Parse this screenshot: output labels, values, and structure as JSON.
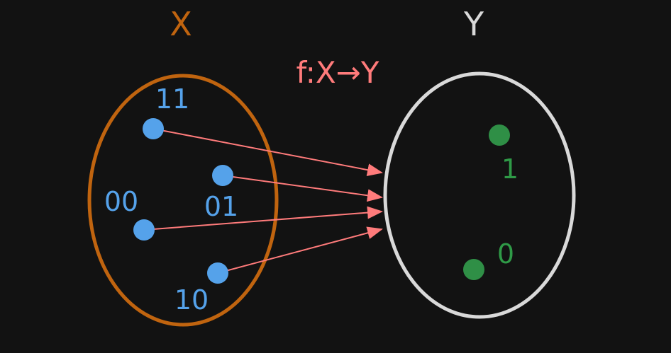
{
  "diagram": {
    "function_label": "f:X→Y",
    "domain_set": {
      "label": "X",
      "color": "#c0640f",
      "elements": [
        {
          "id": "11",
          "label": "11"
        },
        {
          "id": "01",
          "label": "01"
        },
        {
          "id": "00",
          "label": "00"
        },
        {
          "id": "10",
          "label": "10"
        }
      ]
    },
    "codomain_set": {
      "label": "Y",
      "color": "#d9d9d9",
      "elements": [
        {
          "id": "1",
          "label": "1"
        },
        {
          "id": "0",
          "label": "0"
        }
      ]
    },
    "colors": {
      "background": "#121212",
      "domain_point": "#55a2ea",
      "codomain_point": "#2f8f46",
      "arrow": "#ff7b7b",
      "function_label": "#ff7b7b",
      "codomain_label": "#2f9a47"
    },
    "mappings": [
      {
        "from": "11",
        "to": "Y"
      },
      {
        "from": "01",
        "to": "Y"
      },
      {
        "from": "00",
        "to": "Y"
      },
      {
        "from": "10",
        "to": "Y"
      }
    ]
  }
}
